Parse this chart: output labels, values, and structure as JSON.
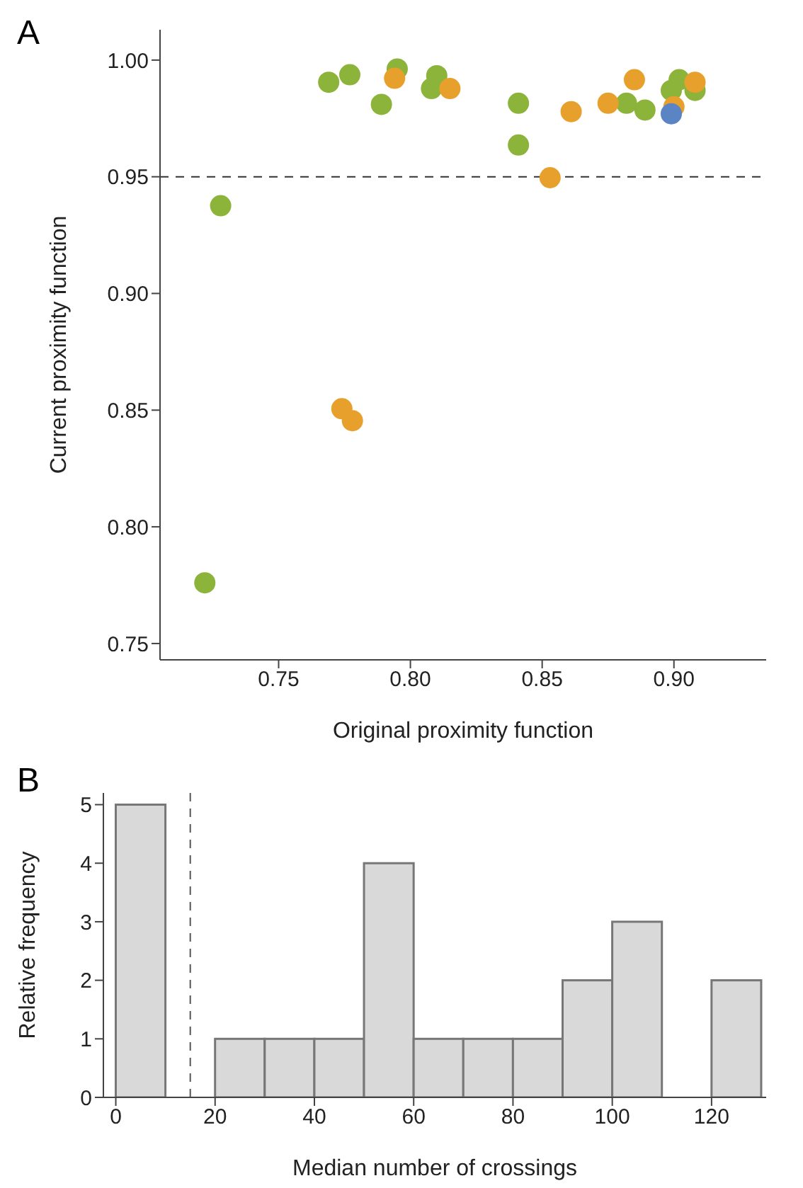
{
  "chart_data": [
    {
      "type": "scatter",
      "title": "A",
      "xlabel": "Original proximity function",
      "ylabel": "Current proximity function",
      "xlim": [
        0.705,
        0.935
      ],
      "xticks": [
        0.75,
        {
          "value": 0.8,
          "label": "0.80"
        },
        0.85,
        {
          "value": 0.9,
          "label": "0.90"
        }
      ],
      "ylim": [
        0.743,
        1.013
      ],
      "yticks": [
        0.75,
        {
          "value": 0.8,
          "label": "0.80"
        },
        0.85,
        {
          "value": 0.9,
          "label": "0.90"
        },
        0.95,
        {
          "value": 1,
          "label": "1.00"
        }
      ],
      "grid": false,
      "legend": false,
      "marker": "circle",
      "ref_lines": [
        {
          "axis": "y",
          "value": 0.95,
          "line_style": "dashed",
          "color": "#333333"
        }
      ],
      "series": [
        {
          "color": "#8cb33a",
          "x": [
            0.769,
            0.728,
            0.722,
            0.899
          ],
          "values": [
            0.9905,
            0.9376,
            0.776,
            0.987
          ]
        },
        {
          "color": "#8cb33a",
          "x": [
            0.777,
            0.795,
            0.789,
            0.81,
            0.808,
            0.841,
            0.841,
            0.882,
            0.889,
            0.902,
            0.908
          ],
          "values": [
            0.9937,
            0.9962,
            0.981,
            0.9933,
            0.9878,
            0.9815,
            0.9636,
            0.9815,
            0.9786,
            0.9916,
            0.987
          ]
        },
        {
          "color": "#e8a02c",
          "x": [
            0.774,
            0.778,
            0.815,
            0.908
          ],
          "values": [
            0.8506,
            0.8455,
            0.9878,
            0.9905
          ]
        },
        {
          "color": "#e8a02c",
          "x": [
            0.794,
            0.853,
            0.861,
            0.875,
            0.885,
            0.9
          ],
          "values": [
            0.9922,
            0.9496,
            0.9779,
            0.9815,
            0.9916,
            0.98
          ]
        },
        {
          "color": "#5b84c4",
          "x": [
            0.899
          ],
          "values": [
            0.977
          ]
        }
      ]
    },
    {
      "type": "histogram",
      "title": "B",
      "xlabel": "Median number of crossings",
      "ylabel": "Relative frequency",
      "color": "#d9d9d9",
      "bins": [
        0,
        10,
        20,
        30,
        40,
        50,
        60,
        70,
        80,
        90,
        100,
        110,
        120,
        130
      ],
      "values": [
        5,
        0,
        1,
        1,
        1,
        4,
        1,
        1,
        1,
        2,
        3,
        0,
        2
      ],
      "xlim": [
        -2.5,
        131
      ],
      "xticks": [
        0,
        20,
        40,
        60,
        80,
        100,
        120
      ],
      "ylim": [
        0,
        5.2
      ],
      "yticks": [
        0,
        1,
        2,
        3,
        4,
        5
      ],
      "grid": false,
      "legend": false,
      "ref_lines": [
        {
          "axis": "x",
          "value": 15,
          "line_style": "dashed",
          "color": "#555555"
        }
      ]
    }
  ]
}
